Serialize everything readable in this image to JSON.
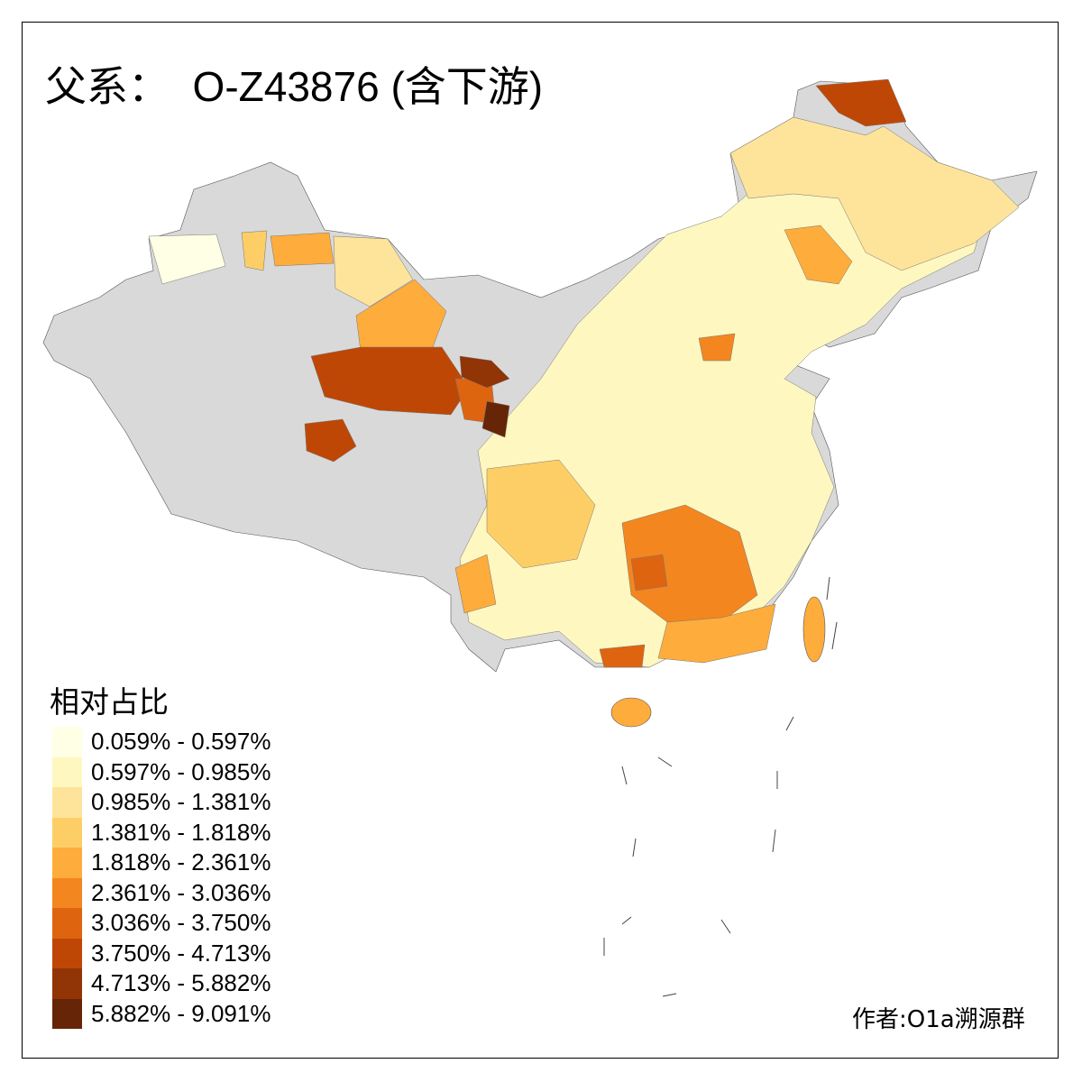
{
  "title": "父系：  O-Z43876 (含下游)",
  "legend": {
    "title": "相对占比",
    "items": [
      {
        "label": "0.059% - 0.597%",
        "color": "#FFFFE5"
      },
      {
        "label": "0.597% - 0.985%",
        "color": "#FFF7C0"
      },
      {
        "label": "0.985% - 1.381%",
        "color": "#FEE49A"
      },
      {
        "label": "1.381% - 1.818%",
        "color": "#FECE66"
      },
      {
        "label": "1.818% - 2.361%",
        "color": "#FEAC3B"
      },
      {
        "label": "2.361% - 3.036%",
        "color": "#F3861F"
      },
      {
        "label": "3.036% - 3.750%",
        "color": "#DF6410"
      },
      {
        "label": "3.750% - 4.713%",
        "color": "#BE4705"
      },
      {
        "label": "4.713% - 5.882%",
        "color": "#913406"
      },
      {
        "label": "5.882% - 9.091%",
        "color": "#662506"
      }
    ],
    "no_data_color": "#D9D9D9"
  },
  "credit": "作者:O1a溯源群"
}
